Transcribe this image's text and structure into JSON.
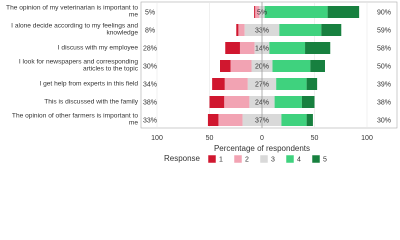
{
  "chart_data": {
    "type": "diverging_bar",
    "categories": [
      "The opinion of my veterinarian is important to me",
      "I alone decide according to my feelings and knowledge",
      "I discuss with my employee",
      "I look for newspapers and corresponding articles to the topic",
      "I get help from experts in this field",
      "This is discussed with the family",
      "The opinion of other farmers is important to me"
    ],
    "series": [
      {
        "name": "1",
        "color": "#d0172f",
        "values": [
          1,
          2,
          14,
          10,
          12,
          14,
          10
        ]
      },
      {
        "name": "2",
        "color": "#f2a3b3",
        "values": [
          4,
          6,
          14,
          20,
          22,
          24,
          23
        ]
      },
      {
        "name": "3",
        "color": "#d9d9d9",
        "values": [
          5,
          33,
          14,
          20,
          27,
          24,
          37
        ],
        "value_labels": [
          "5%",
          "33%",
          "14%",
          "20%",
          "27%",
          "24%",
          "37%"
        ]
      },
      {
        "name": "4",
        "color": "#3fd27e",
        "values": [
          60,
          40,
          34,
          36,
          29,
          26,
          24
        ]
      },
      {
        "name": "5",
        "color": "#17803f",
        "values": [
          30,
          19,
          24,
          14,
          10,
          12,
          6
        ]
      }
    ],
    "left_totals": {
      "values": [
        5,
        8,
        28,
        30,
        34,
        38,
        33
      ],
      "value_labels": [
        "5%",
        "8%",
        "28%",
        "30%",
        "34%",
        "38%",
        "33%"
      ]
    },
    "right_totals": {
      "values": [
        90,
        59,
        58,
        50,
        39,
        38,
        30
      ],
      "value_labels": [
        "90%",
        "59%",
        "58%",
        "50%",
        "39%",
        "38%",
        "30%"
      ]
    },
    "xlim": [
      -100,
      100
    ],
    "xticks": [
      {
        "value": -100,
        "label": "100"
      },
      {
        "value": -50,
        "label": "50"
      },
      0,
      50,
      100
    ],
    "xlabel": "Percentage of respondents",
    "legend_title": "Response"
  }
}
